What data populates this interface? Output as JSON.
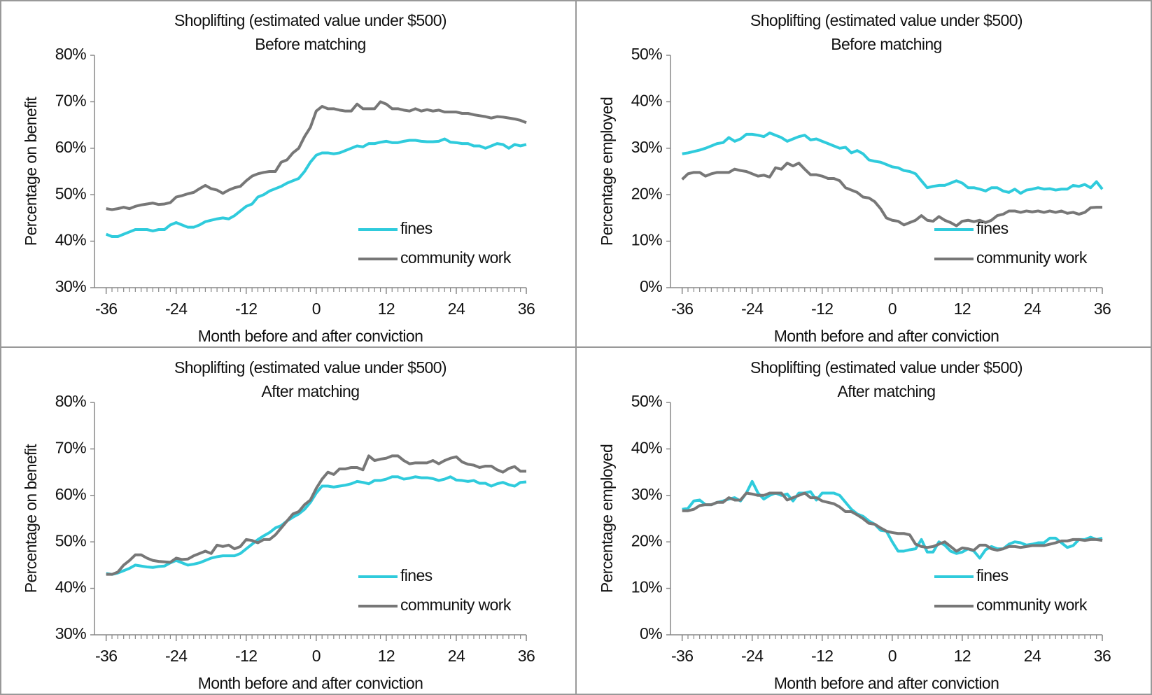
{
  "chart_data": [
    {
      "type": "line",
      "title": "Shoplifting (estimated value under $500)",
      "subtitle": "Before matching",
      "xlabel": "Month before and after conviction",
      "ylabel": "Percentage on benefit",
      "x": [
        -36,
        -35,
        -34,
        -33,
        -32,
        -31,
        -30,
        -29,
        -28,
        -27,
        -26,
        -25,
        -24,
        -23,
        -22,
        -21,
        -20,
        -19,
        -18,
        -17,
        -16,
        -15,
        -14,
        -13,
        -12,
        -11,
        -10,
        -9,
        -8,
        -7,
        -6,
        -5,
        -4,
        -3,
        -2,
        -1,
        0,
        1,
        2,
        3,
        4,
        5,
        6,
        7,
        8,
        9,
        10,
        11,
        12,
        13,
        14,
        15,
        16,
        17,
        18,
        19,
        20,
        21,
        22,
        23,
        24,
        25,
        26,
        27,
        28,
        29,
        30,
        31,
        32,
        33,
        34,
        35,
        36
      ],
      "xlim": [
        -38,
        36
      ],
      "xticks": [
        -36,
        -24,
        -12,
        0,
        12,
        24,
        36
      ],
      "ylim": [
        30,
        80
      ],
      "yticks": [
        {
          "value": 30,
          "label": "30%"
        },
        {
          "value": 40,
          "label": "40%"
        },
        {
          "value": 50,
          "label": "50%"
        },
        {
          "value": 60,
          "label": "60%"
        },
        {
          "value": 70,
          "label": "70%"
        },
        {
          "value": 80,
          "label": "80%"
        }
      ],
      "legend": "lower right",
      "series": [
        {
          "name": "fines",
          "color": "#2fcbdc",
          "values": [
            41.5,
            41,
            41,
            41.5,
            42,
            42.5,
            42.5,
            42.5,
            42.2,
            42.5,
            42.5,
            43.5,
            44,
            43.5,
            43,
            43,
            43.5,
            44.2,
            44.5,
            44.8,
            45,
            44.8,
            45.5,
            46.5,
            47.5,
            48,
            49.5,
            50,
            50.8,
            51.3,
            51.8,
            52.5,
            53,
            53.5,
            55,
            57,
            58.5,
            59,
            59,
            58.8,
            59,
            59.5,
            60,
            60.5,
            60.3,
            61,
            61,
            61.3,
            61.5,
            61.2,
            61.2,
            61.5,
            61.7,
            61.7,
            61.5,
            61.4,
            61.4,
            61.5,
            62,
            61.3,
            61.2,
            61,
            61,
            60.5,
            60.5,
            60,
            60.5,
            61,
            60.8,
            60,
            60.8,
            60.5,
            60.8
          ]
        },
        {
          "name": "community work",
          "color": "#777777",
          "values": [
            47,
            46.8,
            47,
            47.3,
            47,
            47.5,
            47.8,
            48,
            48.2,
            47.9,
            48,
            48.3,
            49.5,
            49.8,
            50.2,
            50.5,
            51.3,
            52,
            51.3,
            51,
            50.3,
            51,
            51.5,
            51.8,
            53,
            54,
            54.5,
            54.8,
            55,
            55,
            57,
            57.5,
            59,
            60,
            62.5,
            64.5,
            68,
            69,
            68.5,
            68.5,
            68.2,
            68,
            68,
            69.5,
            68.5,
            68.5,
            68.5,
            70,
            69.5,
            68.5,
            68.5,
            68.2,
            68,
            68.5,
            68,
            68.3,
            68,
            68.2,
            67.8,
            67.8,
            67.8,
            67.5,
            67.5,
            67.2,
            67,
            66.8,
            66.5,
            66.8,
            66.7,
            66.5,
            66.3,
            66,
            65.5
          ]
        }
      ]
    },
    {
      "type": "line",
      "title": "Shoplifting (estimated value under $500)",
      "subtitle": "Before matching",
      "xlabel": "Month before and after conviction",
      "ylabel": "Percentage employed",
      "x": [
        -36,
        -35,
        -34,
        -33,
        -32,
        -31,
        -30,
        -29,
        -28,
        -27,
        -26,
        -25,
        -24,
        -23,
        -22,
        -21,
        -20,
        -19,
        -18,
        -17,
        -16,
        -15,
        -14,
        -13,
        -12,
        -11,
        -10,
        -9,
        -8,
        -7,
        -6,
        -5,
        -4,
        -3,
        -2,
        -1,
        0,
        1,
        2,
        3,
        4,
        5,
        6,
        7,
        8,
        9,
        10,
        11,
        12,
        13,
        14,
        15,
        16,
        17,
        18,
        19,
        20,
        21,
        22,
        23,
        24,
        25,
        26,
        27,
        28,
        29,
        30,
        31,
        32,
        33,
        34,
        35,
        36
      ],
      "xlim": [
        -38,
        36
      ],
      "xticks": [
        -36,
        -24,
        -12,
        0,
        12,
        24,
        36
      ],
      "ylim": [
        0,
        50
      ],
      "yticks": [
        {
          "value": 0,
          "label": "0%"
        },
        {
          "value": 10,
          "label": "10%"
        },
        {
          "value": 20,
          "label": "20%"
        },
        {
          "value": 30,
          "label": "30%"
        },
        {
          "value": 40,
          "label": "40%"
        },
        {
          "value": 50,
          "label": "50%"
        }
      ],
      "legend": "lower right",
      "series": [
        {
          "name": "fines",
          "color": "#2fcbdc",
          "values": [
            28.8,
            29,
            29.3,
            29.6,
            30,
            30.5,
            31,
            31.2,
            32.3,
            31.5,
            32,
            33,
            33,
            32.8,
            32.5,
            33.3,
            32.8,
            32.3,
            31.5,
            32,
            32.5,
            32.8,
            31.8,
            32,
            31.5,
            31,
            30.5,
            30,
            30.2,
            29,
            29.5,
            28.8,
            27.5,
            27.2,
            27,
            26.5,
            26,
            25.8,
            25.2,
            25,
            24.5,
            23,
            21.5,
            21.8,
            22,
            22,
            22.5,
            23,
            22.5,
            21.5,
            21.5,
            21.2,
            20.8,
            21.5,
            21.5,
            20.8,
            20.5,
            21.2,
            20.3,
            21,
            21.2,
            21.5,
            21.2,
            21.3,
            21,
            21.2,
            21.2,
            22,
            21.8,
            22.2,
            21.5,
            22.8,
            21.2
          ]
        },
        {
          "name": "community work",
          "color": "#777777",
          "values": [
            23.3,
            24.5,
            24.8,
            24.8,
            24,
            24.5,
            24.8,
            24.8,
            24.8,
            25.5,
            25.2,
            25,
            24.5,
            24,
            24.2,
            23.8,
            25.8,
            25.5,
            26.8,
            26.2,
            26.8,
            25.5,
            24.3,
            24.3,
            24,
            23.5,
            23.5,
            23,
            21.5,
            21,
            20.5,
            19.5,
            19.3,
            18.5,
            17,
            15,
            14.5,
            14.3,
            13.5,
            14,
            14.5,
            15.5,
            14.5,
            14.3,
            15.3,
            14.5,
            14,
            13.3,
            14.3,
            14.5,
            14.2,
            14.5,
            14,
            14.5,
            15.5,
            15.8,
            16.5,
            16.5,
            16.2,
            16.5,
            16.3,
            16.5,
            16.2,
            16.5,
            16.2,
            16.5,
            16,
            16.2,
            15.8,
            16.2,
            17.2,
            17.3,
            17.3
          ]
        }
      ]
    },
    {
      "type": "line",
      "title": "Shoplifting (estimated value under $500)",
      "subtitle": "After matching",
      "xlabel": "Month before and after conviction",
      "ylabel": "Percentage on benefit",
      "x": [
        -36,
        -35,
        -34,
        -33,
        -32,
        -31,
        -30,
        -29,
        -28,
        -27,
        -26,
        -25,
        -24,
        -23,
        -22,
        -21,
        -20,
        -19,
        -18,
        -17,
        -16,
        -15,
        -14,
        -13,
        -12,
        -11,
        -10,
        -9,
        -8,
        -7,
        -6,
        -5,
        -4,
        -3,
        -2,
        -1,
        0,
        1,
        2,
        3,
        4,
        5,
        6,
        7,
        8,
        9,
        10,
        11,
        12,
        13,
        14,
        15,
        16,
        17,
        18,
        19,
        20,
        21,
        22,
        23,
        24,
        25,
        26,
        27,
        28,
        29,
        30,
        31,
        32,
        33,
        34,
        35,
        36
      ],
      "xlim": [
        -38,
        36
      ],
      "xticks": [
        -36,
        -24,
        -12,
        0,
        12,
        24,
        36
      ],
      "ylim": [
        30,
        80
      ],
      "yticks": [
        {
          "value": 30,
          "label": "30%"
        },
        {
          "value": 40,
          "label": "40%"
        },
        {
          "value": 50,
          "label": "50%"
        },
        {
          "value": 60,
          "label": "60%"
        },
        {
          "value": 70,
          "label": "70%"
        },
        {
          "value": 80,
          "label": "80%"
        }
      ],
      "legend": "lower right",
      "series": [
        {
          "name": "fines",
          "color": "#2fcbdc",
          "values": [
            43.2,
            43,
            43.3,
            43.8,
            44.3,
            45,
            44.8,
            44.6,
            44.5,
            44.7,
            44.8,
            45.5,
            46,
            45.5,
            45,
            45.2,
            45.5,
            46,
            46.5,
            46.8,
            47,
            47,
            47,
            47.5,
            48.5,
            49.5,
            50.5,
            51.3,
            52,
            53,
            53.5,
            54.5,
            55.3,
            56,
            57,
            58.5,
            60.5,
            62,
            62,
            61.8,
            62,
            62.2,
            62.5,
            63,
            62.8,
            62.5,
            63.2,
            63.2,
            63.5,
            64,
            64,
            63.5,
            63.7,
            64,
            63.8,
            63.8,
            63.6,
            63.2,
            63.5,
            64,
            63.3,
            63.2,
            63,
            63.2,
            62.6,
            62.6,
            62,
            62.5,
            62.8,
            62.3,
            62,
            62.8,
            62.9
          ]
        },
        {
          "name": "community work",
          "color": "#777777",
          "values": [
            43,
            43,
            43.5,
            45,
            46,
            47.2,
            47.2,
            46.5,
            46,
            45.8,
            45.7,
            45.6,
            46.5,
            46.2,
            46.3,
            47,
            47.5,
            48,
            47.5,
            49.3,
            49,
            49.3,
            48.5,
            49,
            50.5,
            50.3,
            49.8,
            50.5,
            50.5,
            51.5,
            53,
            54.5,
            56,
            56.5,
            58,
            59,
            61.5,
            63.5,
            65,
            64.5,
            65.7,
            65.7,
            66,
            66,
            65.5,
            68.5,
            67.5,
            67.8,
            68,
            68.5,
            68.5,
            67.5,
            66.8,
            67,
            67,
            67,
            67.5,
            66.8,
            67.5,
            68,
            68.3,
            67.2,
            66.7,
            66.5,
            66,
            66.3,
            66.3,
            65.5,
            65,
            65.8,
            66.2,
            65.2,
            65.2
          ]
        }
      ]
    },
    {
      "type": "line",
      "title": "Shoplifting (estimated value under $500)",
      "subtitle": "After matching",
      "xlabel": "Month before and after conviction",
      "ylabel": "Percentage employed",
      "x": [
        -36,
        -35,
        -34,
        -33,
        -32,
        -31,
        -30,
        -29,
        -28,
        -27,
        -26,
        -25,
        -24,
        -23,
        -22,
        -21,
        -20,
        -19,
        -18,
        -17,
        -16,
        -15,
        -14,
        -13,
        -12,
        -11,
        -10,
        -9,
        -8,
        -7,
        -6,
        -5,
        -4,
        -3,
        -2,
        -1,
        0,
        1,
        2,
        3,
        4,
        5,
        6,
        7,
        8,
        9,
        10,
        11,
        12,
        13,
        14,
        15,
        16,
        17,
        18,
        19,
        20,
        21,
        22,
        23,
        24,
        25,
        26,
        27,
        28,
        29,
        30,
        31,
        32,
        33,
        34,
        35,
        36
      ],
      "xlim": [
        -38,
        36
      ],
      "xticks": [
        -36,
        -24,
        -12,
        0,
        12,
        24,
        36
      ],
      "ylim": [
        0,
        50
      ],
      "yticks": [
        {
          "value": 0,
          "label": "0%"
        },
        {
          "value": 10,
          "label": "10%"
        },
        {
          "value": 20,
          "label": "20%"
        },
        {
          "value": 30,
          "label": "30%"
        },
        {
          "value": 40,
          "label": "40%"
        },
        {
          "value": 50,
          "label": "50%"
        }
      ],
      "legend": "lower right",
      "series": [
        {
          "name": "fines",
          "color": "#2fcbdc",
          "values": [
            27,
            27.2,
            28.8,
            29,
            28,
            28,
            28.5,
            28.8,
            29.2,
            29.5,
            28.8,
            30.5,
            33,
            30.5,
            29.2,
            30,
            30.5,
            30,
            30.3,
            28.8,
            30.5,
            30.5,
            30.8,
            29,
            30.5,
            30.5,
            30.5,
            30,
            28.5,
            27,
            26,
            25.5,
            24.5,
            23.8,
            22.5,
            22.3,
            20,
            18,
            18,
            18.3,
            18.5,
            20.5,
            17.8,
            17.8,
            20,
            19.3,
            18,
            17.5,
            17.8,
            18.5,
            18,
            16.5,
            18.3,
            19,
            18.5,
            18.5,
            19.5,
            20,
            19.8,
            19.3,
            19.5,
            19.8,
            19.8,
            20.8,
            20.8,
            19.8,
            18.8,
            19.2,
            20.5,
            20.5,
            21,
            20.5,
            20.8
          ]
        },
        {
          "name": "community work",
          "color": "#777777",
          "values": [
            26.7,
            26.7,
            27,
            27.8,
            28,
            28,
            28.5,
            28.5,
            29.5,
            29,
            29,
            30.5,
            30.3,
            30,
            30,
            30.5,
            30.5,
            30.5,
            29,
            29.5,
            30,
            30.5,
            29.5,
            29.5,
            28.8,
            28.5,
            28.2,
            27.5,
            26.5,
            26.5,
            25.8,
            25,
            24,
            23.8,
            23,
            22.3,
            22,
            21.8,
            21.8,
            21.5,
            19.5,
            19,
            18.8,
            19,
            19.5,
            20,
            19,
            18,
            18.7,
            18.5,
            18.2,
            19.3,
            19.3,
            18.5,
            18.2,
            18.5,
            19,
            19,
            18.8,
            19,
            19.2,
            19.2,
            19.2,
            19.5,
            19.8,
            20.2,
            20.2,
            20.5,
            20.5,
            20.3,
            20.5,
            20.5,
            20.3
          ]
        }
      ]
    }
  ]
}
